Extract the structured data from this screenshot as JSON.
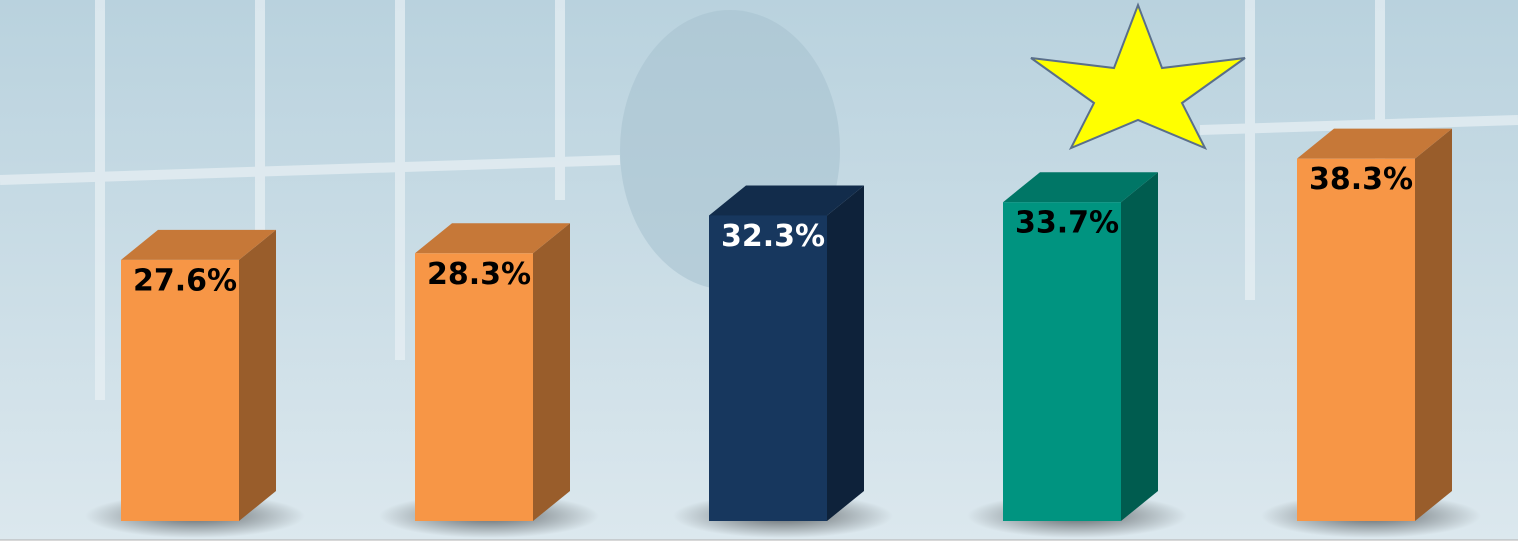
{
  "chart_data": {
    "type": "bar3d",
    "values": [
      27.6,
      28.3,
      32.3,
      33.7,
      38.3
    ],
    "value_labels": [
      "27.6%",
      "28.3%",
      "32.3%",
      "33.7%",
      "38.3%"
    ],
    "colors": [
      "#f79646",
      "#f79646",
      "#17375e",
      "#009480",
      "#f79646"
    ]
  }
}
